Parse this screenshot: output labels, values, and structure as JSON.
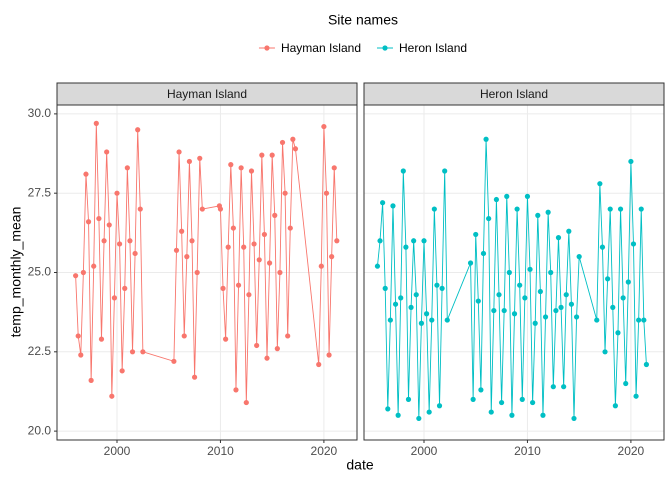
{
  "chart_data": {
    "type": "line",
    "facet_by_series": true,
    "legend_title": "Site names",
    "legend_position": "top",
    "x_label": "date",
    "y_label": "temp_monthly_mean",
    "xlim": [
      1994.2,
      2023.2
    ],
    "xticks": [
      2000,
      2010,
      2020
    ],
    "ylim": [
      19.72,
      30.28
    ],
    "yticks": [
      {
        "value": 20,
        "label": "20.0"
      },
      {
        "value": 22.5,
        "label": "22.5"
      },
      {
        "value": 25,
        "label": "25.0"
      },
      {
        "value": 27.5,
        "label": "27.5"
      },
      {
        "value": 30,
        "label": "30.0"
      }
    ],
    "grid": true,
    "series": [
      {
        "name": "Hayman Island",
        "color": "#f8766d",
        "x": [
          1996.0,
          1996.25,
          1996.5,
          1996.75,
          1997.0,
          1997.25,
          1997.5,
          1997.75,
          1998.0,
          1998.25,
          1998.5,
          1998.75,
          1999.0,
          1999.25,
          1999.5,
          1999.75,
          2000.0,
          2000.25,
          2000.5,
          2000.75,
          2001.0,
          2001.25,
          2001.5,
          2001.75,
          2002.0,
          2002.25,
          2002.5,
          2005.5,
          2005.75,
          2006.0,
          2006.25,
          2006.5,
          2006.75,
          2007.0,
          2007.25,
          2007.5,
          2007.75,
          2008.0,
          2008.25,
          2009.9,
          2010.0,
          2010.25,
          2010.5,
          2010.75,
          2011.0,
          2011.25,
          2011.5,
          2011.75,
          2012.0,
          2012.25,
          2012.5,
          2012.75,
          2013.0,
          2013.25,
          2013.5,
          2013.75,
          2014.0,
          2014.25,
          2014.5,
          2014.75,
          2015.0,
          2015.25,
          2015.5,
          2015.75,
          2016.0,
          2016.25,
          2016.5,
          2016.75,
          2017.0,
          2017.25,
          2019.5,
          2019.75,
          2020.0,
          2020.25,
          2020.5,
          2020.75,
          2021.0,
          2021.25
        ],
        "values": [
          24.9,
          23.0,
          22.4,
          25.0,
          28.1,
          26.6,
          21.6,
          25.2,
          29.7,
          26.7,
          22.9,
          26.0,
          28.8,
          26.5,
          21.1,
          24.2,
          27.5,
          25.9,
          21.9,
          24.5,
          28.3,
          26.0,
          22.5,
          25.6,
          29.5,
          27.0,
          22.5,
          22.2,
          25.7,
          28.8,
          26.3,
          23.0,
          25.5,
          28.5,
          26.0,
          21.7,
          25.0,
          28.6,
          27.0,
          27.1,
          27.0,
          24.5,
          22.9,
          25.8,
          28.4,
          26.4,
          21.3,
          24.6,
          28.3,
          25.8,
          20.9,
          24.3,
          28.2,
          25.9,
          22.7,
          25.4,
          28.7,
          26.2,
          22.3,
          25.3,
          28.7,
          26.8,
          22.6,
          25.0,
          29.1,
          27.5,
          23.0,
          26.4,
          29.2,
          28.9,
          22.1,
          25.2,
          29.6,
          27.5,
          22.4,
          25.5,
          28.3,
          26.0
        ]
      },
      {
        "name": "Heron Island",
        "color": "#00bfc4",
        "x": [
          1995.5,
          1995.75,
          1996.0,
          1996.25,
          1996.5,
          1996.75,
          1997.0,
          1997.25,
          1997.5,
          1997.75,
          1998.0,
          1998.25,
          1998.5,
          1998.75,
          1999.0,
          1999.25,
          1999.5,
          1999.75,
          2000.0,
          2000.25,
          2000.5,
          2000.75,
          2001.0,
          2001.25,
          2001.5,
          2001.75,
          2002.0,
          2002.25,
          2004.5,
          2004.75,
          2005.0,
          2005.25,
          2005.5,
          2005.75,
          2006.0,
          2006.25,
          2006.5,
          2006.75,
          2007.0,
          2007.25,
          2007.5,
          2007.75,
          2008.0,
          2008.25,
          2008.5,
          2008.75,
          2009.0,
          2009.25,
          2009.5,
          2009.75,
          2010.0,
          2010.25,
          2010.5,
          2010.75,
          2011.0,
          2011.25,
          2011.5,
          2011.75,
          2012.0,
          2012.25,
          2012.5,
          2012.75,
          2013.0,
          2013.25,
          2013.5,
          2013.75,
          2014.0,
          2014.25,
          2014.5,
          2014.75,
          2015.0,
          2016.7,
          2017.0,
          2017.25,
          2017.5,
          2017.75,
          2018.0,
          2018.25,
          2018.5,
          2018.75,
          2019.0,
          2019.25,
          2019.5,
          2019.75,
          2020.0,
          2020.25,
          2020.5,
          2020.75,
          2021.0,
          2021.25,
          2021.5
        ],
        "values": [
          25.2,
          26.0,
          27.2,
          24.5,
          20.7,
          23.5,
          27.1,
          24.0,
          20.5,
          24.2,
          28.2,
          25.8,
          21.0,
          23.9,
          26.0,
          24.3,
          20.4,
          23.4,
          26.0,
          23.7,
          20.6,
          23.5,
          27.0,
          24.6,
          20.8,
          24.5,
          28.2,
          23.5,
          25.3,
          21.0,
          26.2,
          24.1,
          21.3,
          25.6,
          29.2,
          26.7,
          20.6,
          23.8,
          27.3,
          24.3,
          20.9,
          23.8,
          27.4,
          25.0,
          20.5,
          23.7,
          27.0,
          24.6,
          21.0,
          24.2,
          27.4,
          25.1,
          20.9,
          23.4,
          26.8,
          24.4,
          20.5,
          23.6,
          26.9,
          25.0,
          21.4,
          23.8,
          26.1,
          23.9,
          21.4,
          24.3,
          26.3,
          24.0,
          20.4,
          23.6,
          25.5,
          23.5,
          27.8,
          25.8,
          22.5,
          24.8,
          27.0,
          23.9,
          20.8,
          23.1,
          27.0,
          24.2,
          21.5,
          24.7,
          28.5,
          25.9,
          21.1,
          23.5,
          27.0,
          23.5,
          22.1
        ]
      }
    ]
  }
}
